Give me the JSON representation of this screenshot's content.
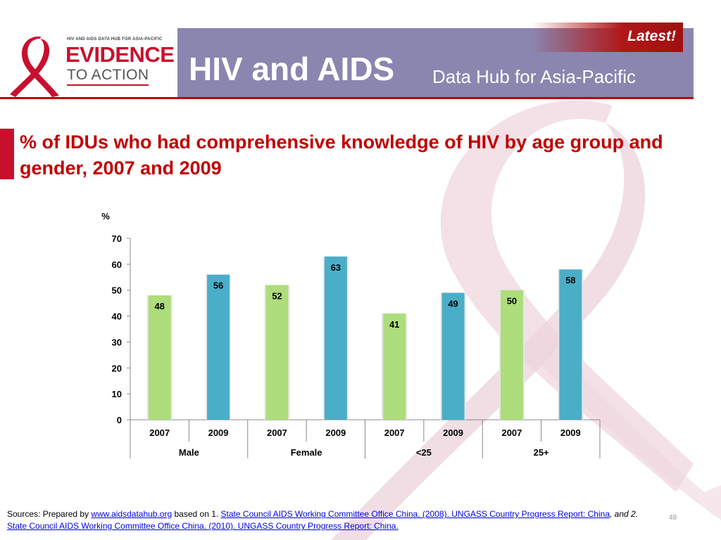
{
  "header": {
    "logo_top": "HIV AND AIDS DATA HUB FOR ASIA-PACIFIC",
    "logo_line1": "EVIDENCE",
    "logo_line2": "TO ACTION",
    "title_main": "HIV and AIDS",
    "title_sub": "Data Hub for Asia-Pacific",
    "latest": "Latest!"
  },
  "colors": {
    "green": "#aedd7b",
    "teal": "#4aaec8",
    "header_band": "#8a86b0",
    "accent_red": "#c00000"
  },
  "chart_data": {
    "type": "bar",
    "title": "% of IDUs who had comprehensive knowledge of HIV by age group and gender, 2007 and 2009",
    "ylabel": "%",
    "ylim": [
      0,
      70
    ],
    "yticks": [
      0,
      10,
      20,
      30,
      40,
      50,
      60,
      70
    ],
    "categories": [
      "2007",
      "2009",
      "2007",
      "2009",
      "2007",
      "2009",
      "2007",
      "2009"
    ],
    "groups": [
      "Male",
      "Female",
      "<25",
      "25+"
    ],
    "values": [
      48,
      56,
      52,
      63,
      41,
      49,
      50,
      58
    ],
    "value_labels": [
      "48",
      "56",
      "52",
      "63",
      "41",
      "49",
      "50",
      "58"
    ],
    "bar_colors": [
      "green",
      "teal",
      "green",
      "teal",
      "green",
      "teal",
      "green",
      "teal"
    ],
    "grid": false,
    "legend": "none"
  },
  "footer": {
    "prefix": "Sources: Prepared by ",
    "link1": "www.aidsdatahub.org",
    "mid1": "  based on 1. ",
    "link2": "State Council AIDS Working Committee Office China. (2008). UNGASS Country Progress Report: China",
    "mid2": ", and 2.  ",
    "link3": "State Council AIDS Working Committee Office China. (2010). UNGASS Country Progress Report: China.",
    "page_number": "48"
  }
}
